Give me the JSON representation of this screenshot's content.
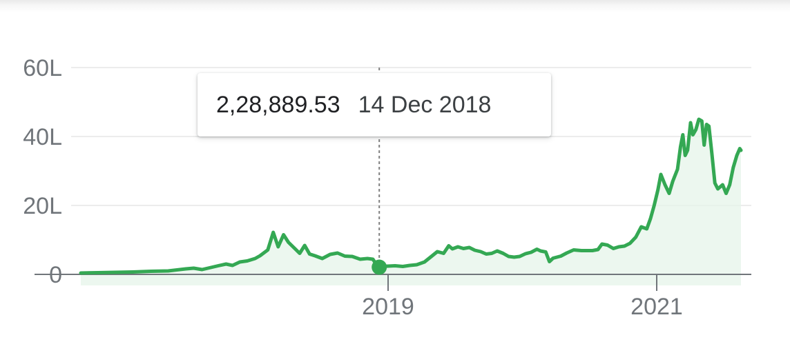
{
  "colors": {
    "line": "#34a853",
    "fill": "#e6f4ea",
    "grid": "#ececec",
    "axis": "#70757a",
    "label": "#70757a",
    "crosshair": "#7f7f7f"
  },
  "tooltip": {
    "value": "2,28,889.53",
    "date": "14 Dec 2018"
  },
  "chart_data": {
    "type": "area",
    "title": "",
    "xlabel": "",
    "ylabel": "",
    "y_unit": "L (lakh)",
    "ylim": [
      0,
      60
    ],
    "xlim": [
      "2017-04-15",
      "2021-05-08"
    ],
    "y_ticks": [
      {
        "value": 0,
        "label": "0"
      },
      {
        "value": 20,
        "label": "20L"
      },
      {
        "value": 40,
        "label": "40L"
      },
      {
        "value": 60,
        "label": "60L"
      }
    ],
    "x_ticks": [
      {
        "value": "2019-01-01",
        "label": "2019"
      },
      {
        "value": "2021-01-01",
        "label": "2021"
      }
    ],
    "grid": true,
    "legend": "none",
    "highlight": {
      "x": "2018-12-14",
      "y": 2.29
    },
    "series": [
      {
        "points": [
          [
            "2017-04-15",
            0.4
          ],
          [
            "2017-05-20",
            0.5
          ],
          [
            "2017-06-25",
            0.6
          ],
          [
            "2017-07-30",
            0.7
          ],
          [
            "2017-09-05",
            0.9
          ],
          [
            "2017-10-10",
            1.0
          ],
          [
            "2017-11-15",
            1.6
          ],
          [
            "2017-12-01",
            1.8
          ],
          [
            "2017-12-18",
            1.4
          ],
          [
            "2018-01-05",
            2.0
          ],
          [
            "2018-01-20",
            2.5
          ],
          [
            "2018-02-05",
            3.0
          ],
          [
            "2018-02-18",
            2.6
          ],
          [
            "2018-03-05",
            3.6
          ],
          [
            "2018-03-20",
            3.9
          ],
          [
            "2018-04-05",
            4.6
          ],
          [
            "2018-04-15",
            5.4
          ],
          [
            "2018-05-01",
            7.1
          ],
          [
            "2018-05-12",
            12.2
          ],
          [
            "2018-05-22",
            8.0
          ],
          [
            "2018-06-02",
            11.5
          ],
          [
            "2018-06-12",
            9.3
          ],
          [
            "2018-06-25",
            7.5
          ],
          [
            "2018-07-05",
            6.1
          ],
          [
            "2018-07-15",
            8.4
          ],
          [
            "2018-07-25",
            5.9
          ],
          [
            "2018-08-05",
            5.4
          ],
          [
            "2018-08-20",
            4.6
          ],
          [
            "2018-09-05",
            5.8
          ],
          [
            "2018-09-20",
            6.2
          ],
          [
            "2018-10-05",
            5.3
          ],
          [
            "2018-10-20",
            5.2
          ],
          [
            "2018-11-05",
            4.4
          ],
          [
            "2018-11-20",
            4.6
          ],
          [
            "2018-12-01",
            4.4
          ],
          [
            "2018-12-07",
            3.1
          ],
          [
            "2018-12-14",
            2.29
          ],
          [
            "2019-01-01",
            2.4
          ],
          [
            "2019-01-20",
            2.5
          ],
          [
            "2019-02-10",
            2.3
          ],
          [
            "2019-03-01",
            2.6
          ],
          [
            "2019-03-20",
            2.8
          ],
          [
            "2019-04-10",
            3.6
          ],
          [
            "2019-05-01",
            5.4
          ],
          [
            "2019-05-15",
            6.6
          ],
          [
            "2019-06-01",
            6.1
          ],
          [
            "2019-06-15",
            8.3
          ],
          [
            "2019-06-25",
            7.4
          ],
          [
            "2019-07-10",
            8.0
          ],
          [
            "2019-07-25",
            7.5
          ],
          [
            "2019-08-10",
            7.8
          ],
          [
            "2019-08-25",
            7.0
          ],
          [
            "2019-09-10",
            6.6
          ],
          [
            "2019-09-25",
            5.9
          ],
          [
            "2019-10-10",
            6.1
          ],
          [
            "2019-10-25",
            6.8
          ],
          [
            "2019-11-10",
            6.1
          ],
          [
            "2019-11-25",
            5.2
          ],
          [
            "2019-12-10",
            5.0
          ],
          [
            "2019-12-25",
            5.2
          ],
          [
            "2020-01-10",
            6.0
          ],
          [
            "2020-01-25",
            6.4
          ],
          [
            "2020-02-10",
            7.3
          ],
          [
            "2020-02-20",
            6.8
          ],
          [
            "2020-03-05",
            6.5
          ],
          [
            "2020-03-15",
            3.7
          ],
          [
            "2020-03-25",
            4.7
          ],
          [
            "2020-04-15",
            5.3
          ],
          [
            "2020-05-01",
            6.2
          ],
          [
            "2020-05-20",
            7.1
          ],
          [
            "2020-06-10",
            6.9
          ],
          [
            "2020-06-25",
            6.9
          ],
          [
            "2020-07-10",
            6.9
          ],
          [
            "2020-07-25",
            7.2
          ],
          [
            "2020-08-05",
            8.8
          ],
          [
            "2020-08-20",
            8.5
          ],
          [
            "2020-09-05",
            7.5
          ],
          [
            "2020-09-20",
            8.0
          ],
          [
            "2020-10-05",
            8.2
          ],
          [
            "2020-10-20",
            9.0
          ],
          [
            "2020-11-05",
            10.8
          ],
          [
            "2020-11-20",
            13.8
          ],
          [
            "2020-12-05",
            13.2
          ],
          [
            "2020-12-15",
            16.2
          ],
          [
            "2020-12-25",
            20.0
          ],
          [
            "2021-01-03",
            24.5
          ],
          [
            "2021-01-08",
            29.0
          ],
          [
            "2021-01-15",
            26.0
          ],
          [
            "2021-01-22",
            23.5
          ],
          [
            "2021-01-28",
            27.0
          ],
          [
            "2021-02-05",
            30.5
          ],
          [
            "2021-02-10",
            37.0
          ],
          [
            "2021-02-14",
            40.5
          ],
          [
            "2021-02-18",
            34.5
          ],
          [
            "2021-02-22",
            36.0
          ],
          [
            "2021-02-27",
            44.0
          ],
          [
            "2021-03-03",
            40.5
          ],
          [
            "2021-03-08",
            42.0
          ],
          [
            "2021-03-13",
            45.0
          ],
          [
            "2021-03-18",
            44.5
          ],
          [
            "2021-03-22",
            37.5
          ],
          [
            "2021-03-26",
            43.5
          ],
          [
            "2021-03-30",
            43.0
          ],
          [
            "2021-04-04",
            35.0
          ],
          [
            "2021-04-09",
            26.5
          ],
          [
            "2021-04-14",
            24.8
          ],
          [
            "2021-04-22",
            26.0
          ],
          [
            "2021-04-28",
            23.5
          ],
          [
            "2021-05-04",
            26.0
          ],
          [
            "2021-05-10",
            31.0
          ],
          [
            "2021-05-16",
            34.5
          ],
          [
            "2021-05-21",
            36.5
          ],
          [
            "2021-05-23",
            36.0
          ]
        ]
      }
    ]
  }
}
